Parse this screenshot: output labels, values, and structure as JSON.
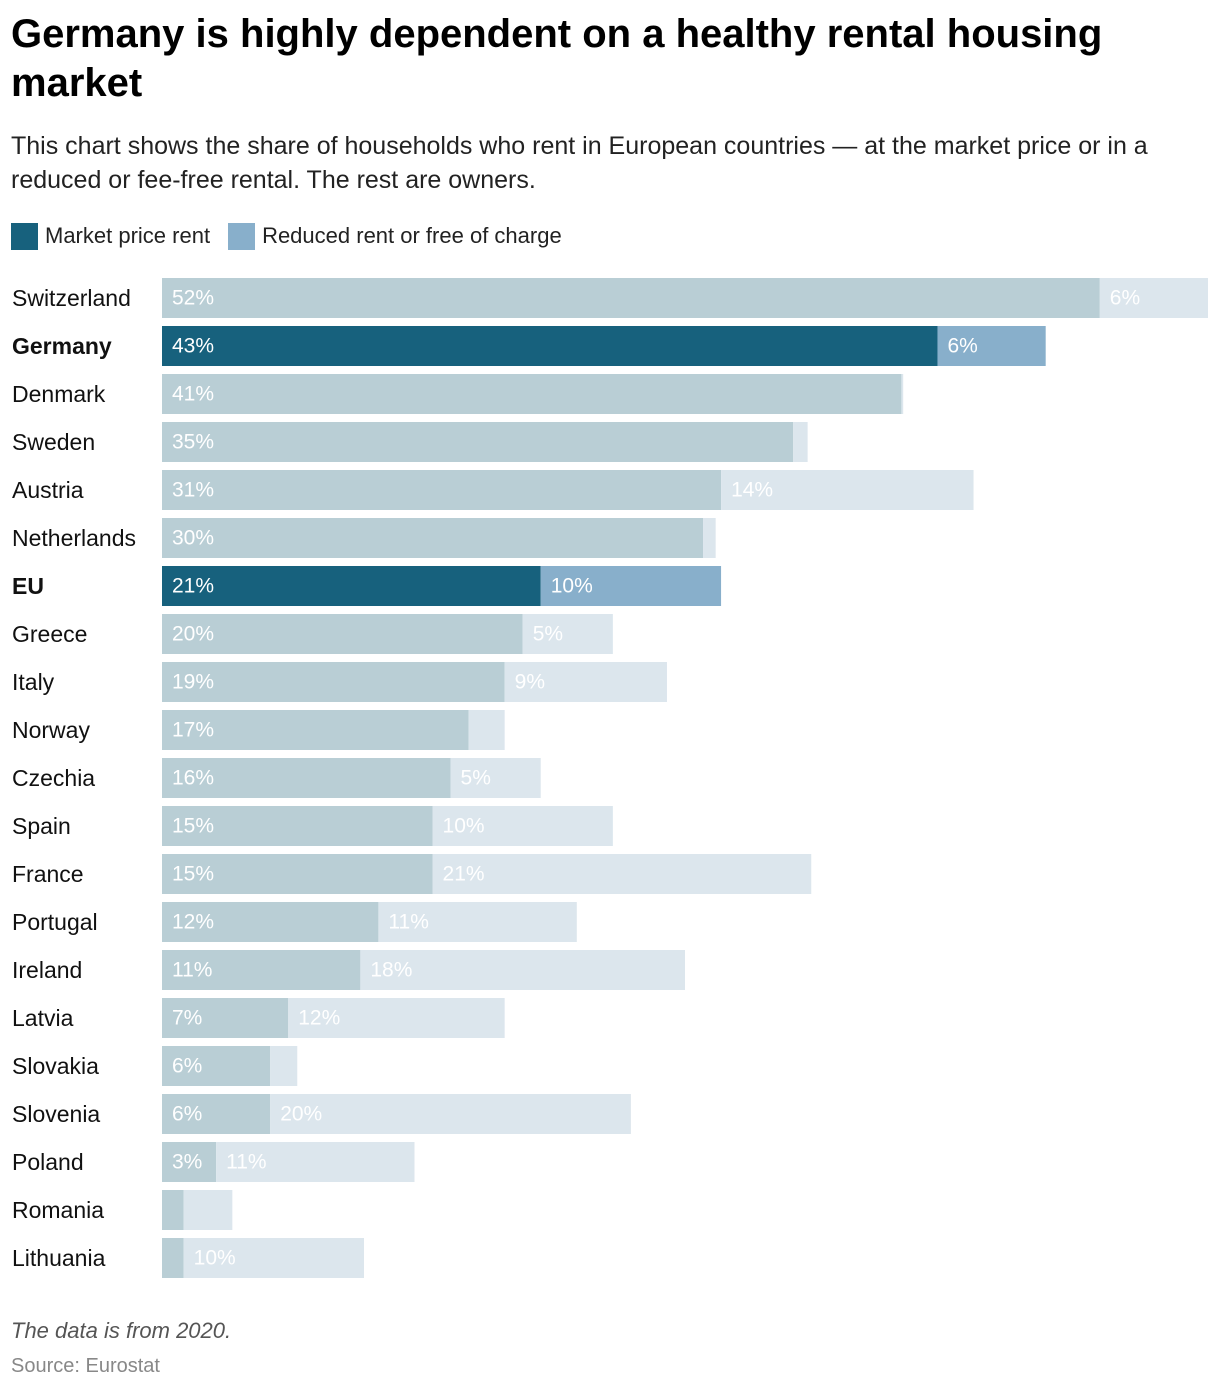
{
  "chart_data": {
    "type": "bar",
    "orientation": "horizontal",
    "stacked": true,
    "title": "Germany is highly dependent on a healthy rental housing market",
    "subtitle": "This chart shows the share of households who rent in European countries — at the market price or in a reduced or fee-free rental. The rest are owners.",
    "categories": [
      "Switzerland",
      "Germany",
      "Denmark",
      "Sweden",
      "Austria",
      "Netherlands",
      "EU",
      "Greece",
      "Italy",
      "Norway",
      "Czechia",
      "Spain",
      "France",
      "Portugal",
      "Ireland",
      "Latvia",
      "Slovakia",
      "Slovenia",
      "Poland",
      "Romania",
      "Lithuania"
    ],
    "highlighted": [
      "Germany",
      "EU"
    ],
    "series": [
      {
        "name": "Market price rent",
        "values": [
          52,
          43,
          41,
          35,
          31,
          30,
          21,
          20,
          19,
          17,
          16,
          15,
          15,
          12,
          11,
          7,
          6,
          6,
          3,
          1.2,
          1.2
        ],
        "labels": [
          "52%",
          "43%",
          "41%",
          "35%",
          "31%",
          "30%",
          "21%",
          "20%",
          "19%",
          "17%",
          "16%",
          "15%",
          "15%",
          "12%",
          "11%",
          "7%",
          "6%",
          "6%",
          "3%",
          "",
          ""
        ]
      },
      {
        "name": "Reduced rent or free of charge",
        "values": [
          6,
          6,
          0.1,
          0.8,
          14,
          0.7,
          10,
          5,
          9,
          2,
          5,
          10,
          21,
          11,
          18,
          12,
          1.5,
          20,
          11,
          2.7,
          10
        ],
        "labels": [
          "6%",
          "6%",
          "",
          "",
          "14%",
          "",
          "10%",
          "5%",
          "9%",
          "",
          "5%",
          "10%",
          "21%",
          "11%",
          "18%",
          "12%",
          "",
          "20%",
          "11%",
          "",
          "10%"
        ]
      }
    ],
    "xlim": [
      0,
      58
    ],
    "xlabel": "",
    "ylabel": "",
    "legend_position": "top-left",
    "grid": false
  },
  "legend": {
    "market_label": "Market price rent",
    "reduced_label": "Reduced rent or free of charge"
  },
  "colors": {
    "market_highlight": "#17617d",
    "reduced_highlight": "#88afcb",
    "market_muted": "#b9ced5",
    "reduced_muted": "#dce6ed"
  },
  "footer": {
    "note": "The data is from 2020.",
    "source": "Source: Eurostat"
  }
}
